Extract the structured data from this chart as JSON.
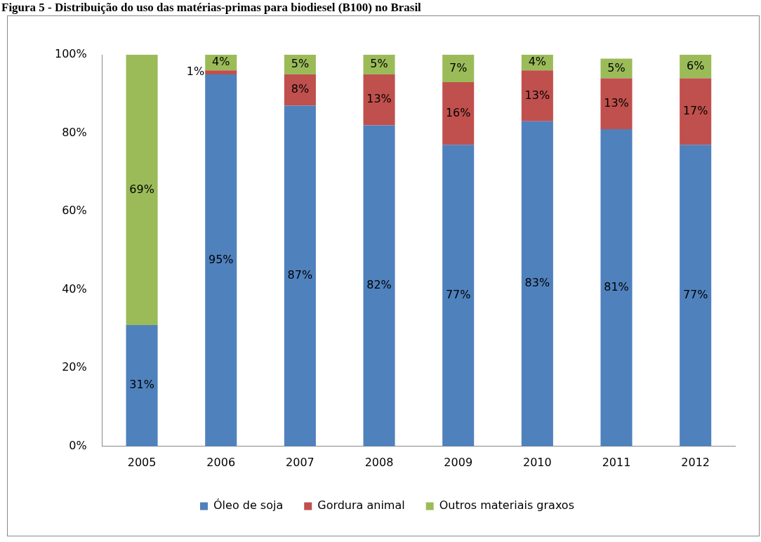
{
  "chart_data": {
    "type": "bar",
    "title": "Figura 5 - Distribuição do uso das matérias-primas para biodiesel (B100) no Brasil",
    "categories": [
      "2005",
      "2006",
      "2007",
      "2008",
      "2009",
      "2010",
      "2011",
      "2012"
    ],
    "stacked": true,
    "series": [
      {
        "name": "Óleo de soja",
        "color": "#4f81bd",
        "values": [
          31,
          95,
          87,
          82,
          77,
          83,
          81,
          77
        ],
        "value_labels": [
          "31%",
          "95%",
          "87%",
          "82%",
          "77%",
          "83%",
          "81%",
          "77%"
        ]
      },
      {
        "name": "Gordura animal",
        "color": "#c0504d",
        "values": [
          0,
          1,
          8,
          13,
          16,
          13,
          13,
          17
        ],
        "value_labels": [
          null,
          "1%",
          "8%",
          "13%",
          "16%",
          "13%",
          "13%",
          "17%"
        ]
      },
      {
        "name": "Outros materiais graxos",
        "color": "#9bbb59",
        "values": [
          69,
          4,
          5,
          5,
          7,
          4,
          5,
          6
        ],
        "value_labels": [
          "69%",
          "4%",
          "5%",
          "5%",
          "7%",
          "4%",
          "5%",
          "6%"
        ]
      }
    ],
    "ylim": [
      0,
      100
    ],
    "yticks": [
      {
        "value": 0,
        "label": "0%"
      },
      {
        "value": 20,
        "label": "20%"
      },
      {
        "value": 40,
        "label": "40%"
      },
      {
        "value": 60,
        "label": "60%"
      },
      {
        "value": 80,
        "label": "80%"
      },
      {
        "value": 100,
        "label": "100%"
      }
    ],
    "grid": false,
    "legend": "bottom"
  }
}
